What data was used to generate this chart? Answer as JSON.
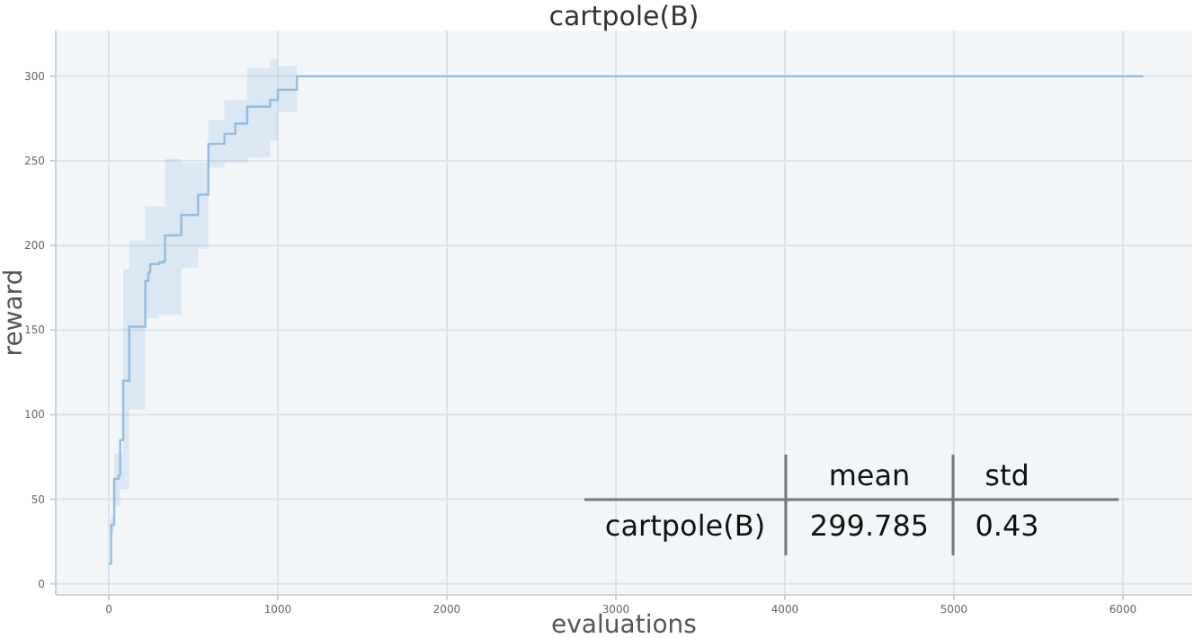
{
  "chart_data": {
    "type": "step",
    "title": "cartpole(B)",
    "xlabel": "evaluations",
    "ylabel": "reward",
    "xlim": [
      -314,
      6410
    ],
    "ylim": [
      -6.5,
      327
    ],
    "xticks": [
      0,
      1000,
      2000,
      3000,
      4000,
      5000,
      6000
    ],
    "yticks": [
      0,
      50,
      100,
      150,
      200,
      250,
      300
    ],
    "grid": true,
    "series": [
      {
        "color": "#92bde0",
        "x": [
          0,
          14,
          32,
          57,
          67,
          85,
          121,
          216,
          234,
          245,
          298,
          326,
          333,
          429,
          528,
          589,
          684,
          748,
          819,
          954,
          1000,
          1113,
          6120
        ],
        "values": [
          12,
          35,
          62,
          64,
          85,
          120,
          152,
          179,
          184,
          189,
          190,
          191,
          206,
          218,
          230,
          260,
          266,
          272,
          282,
          286,
          292,
          300,
          300
        ],
        "lower": [
          12,
          30,
          46,
          46,
          56,
          56,
          103,
          157,
          157,
          157,
          159,
          159,
          159,
          187,
          198,
          246,
          249,
          249,
          252,
          262,
          279,
          300,
          300
        ],
        "upper": [
          12,
          40,
          77,
          77,
          77,
          186,
          203,
          223,
          223,
          223,
          223,
          223,
          251,
          249,
          249,
          274,
          286,
          286,
          305,
          310,
          306,
          300,
          300
        ]
      }
    ],
    "annotations": [
      "mean",
      "std",
      "cartpole(B)",
      "299.785",
      "0.43"
    ]
  }
}
